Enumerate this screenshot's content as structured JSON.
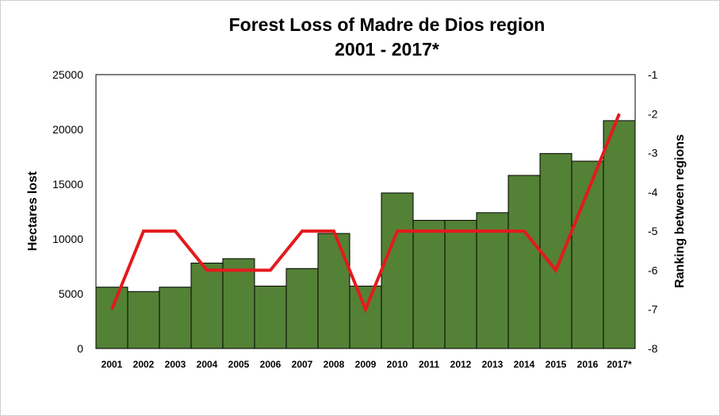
{
  "chart_data": {
    "type": "bar",
    "title_line1": "Forest Loss of Madre de Dios region",
    "title_line2": "2001 - 2017*",
    "ylabel": "Hectares lost",
    "y2label": "Ranking between regions",
    "categories": [
      "2001",
      "2002",
      "2003",
      "2004",
      "2005",
      "2006",
      "2007",
      "2008",
      "2009",
      "2010",
      "2011",
      "2012",
      "2013",
      "2014",
      "2015",
      "2016",
      "2017*"
    ],
    "series": [
      {
        "type": "bar",
        "axis": "left",
        "color": "#538135",
        "values": [
          5600,
          5200,
          5600,
          7800,
          8200,
          5700,
          7300,
          10500,
          5700,
          14200,
          11700,
          11700,
          12400,
          15800,
          17800,
          17100,
          20800
        ]
      },
      {
        "type": "line",
        "axis": "right",
        "color": "#e31a1c",
        "values": [
          -7,
          -5,
          -5,
          -6,
          -6,
          -6,
          -5,
          -5,
          -7,
          -5,
          -5,
          -5,
          -5,
          -5,
          -6,
          -4,
          -2
        ]
      }
    ],
    "ylim": [
      0,
      25000
    ],
    "yticks": [
      0,
      5000,
      10000,
      15000,
      20000,
      25000
    ],
    "y2lim": [
      -8,
      -1
    ],
    "y2ticks": [
      -8,
      -7,
      -6,
      -5,
      -4,
      -3,
      -2,
      -1
    ],
    "grid": false,
    "legend": "none"
  }
}
